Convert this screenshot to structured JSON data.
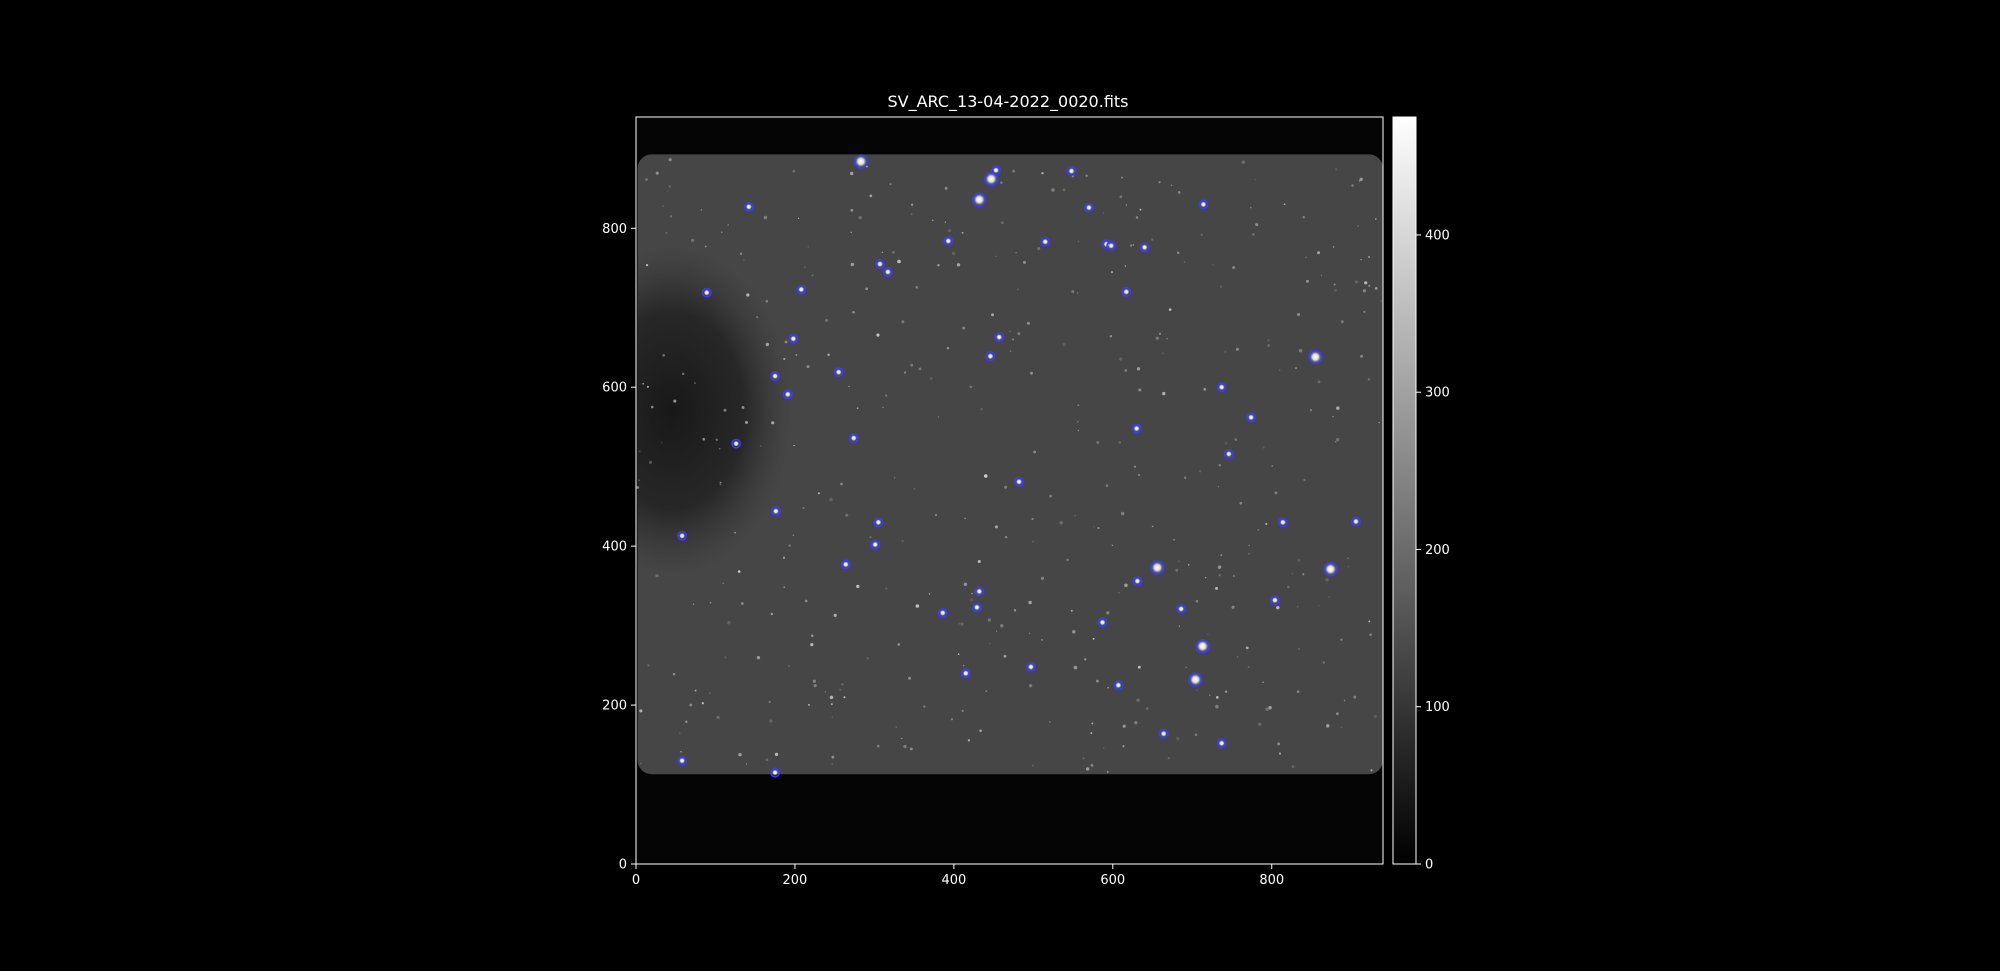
{
  "figure": {
    "background": "#000000",
    "foreground": "#ffffff",
    "marker_color": "#3a3aff"
  },
  "chart_data": {
    "type": "heatmap",
    "title": "SV_ARC_13-04-2022_0020.fits",
    "xlabel": "",
    "ylabel": "",
    "xlim": [
      0,
      940
    ],
    "ylim": [
      0,
      940
    ],
    "xticks": [
      0,
      200,
      400,
      600,
      800
    ],
    "yticks": [
      0,
      200,
      400,
      600,
      800
    ],
    "grid": false,
    "colormap": "gray",
    "colorbar": {
      "range": [
        0,
        475
      ],
      "ticks": [
        0,
        100,
        200,
        300,
        400
      ]
    },
    "image": {
      "detector_region": {
        "x": [
          2,
          940
        ],
        "y": [
          113,
          893
        ]
      },
      "background_level": 88,
      "dark_blotch_center": [
        45,
        570
      ]
    },
    "detected_sources": [
      {
        "x": 283,
        "y": 884,
        "bright": true
      },
      {
        "x": 453,
        "y": 873
      },
      {
        "x": 447,
        "y": 862,
        "bright": true
      },
      {
        "x": 432,
        "y": 836,
        "bright": true
      },
      {
        "x": 548,
        "y": 872
      },
      {
        "x": 142,
        "y": 827
      },
      {
        "x": 570,
        "y": 826
      },
      {
        "x": 714,
        "y": 830
      },
      {
        "x": 393,
        "y": 784
      },
      {
        "x": 515,
        "y": 783
      },
      {
        "x": 592,
        "y": 780
      },
      {
        "x": 598,
        "y": 778
      },
      {
        "x": 640,
        "y": 776
      },
      {
        "x": 307,
        "y": 755
      },
      {
        "x": 317,
        "y": 745
      },
      {
        "x": 208,
        "y": 723
      },
      {
        "x": 89,
        "y": 719
      },
      {
        "x": 617,
        "y": 720
      },
      {
        "x": 457,
        "y": 663
      },
      {
        "x": 198,
        "y": 661
      },
      {
        "x": 446,
        "y": 639
      },
      {
        "x": 855,
        "y": 638,
        "bright": true
      },
      {
        "x": 255,
        "y": 619
      },
      {
        "x": 175,
        "y": 614
      },
      {
        "x": 191,
        "y": 591
      },
      {
        "x": 737,
        "y": 600
      },
      {
        "x": 774,
        "y": 562
      },
      {
        "x": 630,
        "y": 548
      },
      {
        "x": 274,
        "y": 536
      },
      {
        "x": 126,
        "y": 529
      },
      {
        "x": 746,
        "y": 516
      },
      {
        "x": 482,
        "y": 481
      },
      {
        "x": 176,
        "y": 444
      },
      {
        "x": 305,
        "y": 430
      },
      {
        "x": 814,
        "y": 430
      },
      {
        "x": 906,
        "y": 431
      },
      {
        "x": 58,
        "y": 413
      },
      {
        "x": 301,
        "y": 402
      },
      {
        "x": 264,
        "y": 377
      },
      {
        "x": 656,
        "y": 373,
        "bright": true
      },
      {
        "x": 874,
        "y": 371,
        "bright": true
      },
      {
        "x": 631,
        "y": 356
      },
      {
        "x": 432,
        "y": 343
      },
      {
        "x": 804,
        "y": 332
      },
      {
        "x": 429,
        "y": 323
      },
      {
        "x": 686,
        "y": 321
      },
      {
        "x": 386,
        "y": 316
      },
      {
        "x": 587,
        "y": 304
      },
      {
        "x": 713,
        "y": 274,
        "bright": true
      },
      {
        "x": 497,
        "y": 248
      },
      {
        "x": 415,
        "y": 240
      },
      {
        "x": 704,
        "y": 232,
        "bright": true
      },
      {
        "x": 607,
        "y": 225
      },
      {
        "x": 664,
        "y": 164
      },
      {
        "x": 737,
        "y": 152
      },
      {
        "x": 58,
        "y": 130
      },
      {
        "x": 175,
        "y": 115
      }
    ]
  }
}
